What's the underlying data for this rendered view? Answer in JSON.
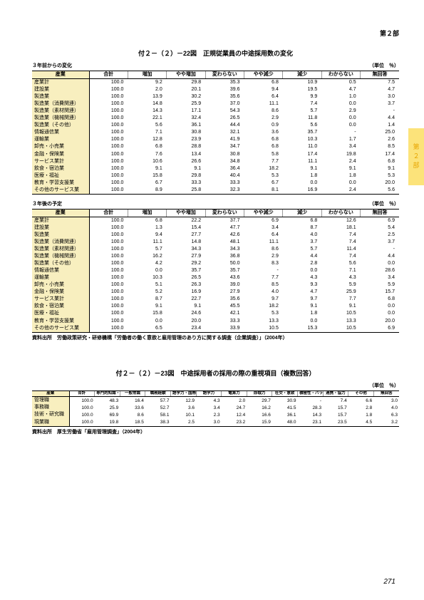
{
  "header": {
    "part": "第２部"
  },
  "sideTab": "第２部",
  "pageNumber": "271",
  "figure22": {
    "title": "付２－（２）－22図　正規従業員の中途採用数の変化",
    "unit": "（単位　％）",
    "subtitles": {
      "top": "３年前からの変化",
      "bottom": "３年後の予定"
    },
    "cols": [
      "産業",
      "合計",
      "増加",
      "やや増加",
      "変わらない",
      "やや減少",
      "減少",
      "わからない",
      "無回答"
    ],
    "rowsLabel": [
      "産業計",
      "建設業",
      "製造業",
      "製造業（消費関連）",
      "製造業（素材関連）",
      "製造業（機械関連）",
      "製造業（その他）",
      "情報通信業",
      "運輸業",
      "卸売・小売業",
      "金融・保険業",
      "サービス業計",
      "飲食・宿泊業",
      "医療・福祉",
      "教育・学習支援業",
      "その他のサービス業"
    ],
    "top": [
      [
        "100.0",
        "9.2",
        "29.8",
        "35.3",
        "6.8",
        "10.9",
        "0.5",
        "7.5"
      ],
      [
        "100.0",
        "2.0",
        "20.1",
        "39.6",
        "9.4",
        "19.5",
        "4.7",
        "4.7"
      ],
      [
        "100.0",
        "13.9",
        "30.2",
        "35.6",
        "6.4",
        "9.9",
        "1.0",
        "3.0"
      ],
      [
        "100.0",
        "14.8",
        "25.9",
        "37.0",
        "11.1",
        "7.4",
        "0.0",
        "3.7"
      ],
      [
        "100.0",
        "14.3",
        "17.1",
        "54.3",
        "8.6",
        "5.7",
        "2.9",
        "-"
      ],
      [
        "100.0",
        "22.1",
        "32.4",
        "26.5",
        "2.9",
        "11.8",
        "0.0",
        "4.4"
      ],
      [
        "100.0",
        "5.6",
        "36.1",
        "44.4",
        "0.9",
        "5.6",
        "0.0",
        "1.4"
      ],
      [
        "100.0",
        "7.1",
        "30.8",
        "32.1",
        "3.6",
        "35.7",
        "-",
        "25.0"
      ],
      [
        "100.0",
        "12.8",
        "23.9",
        "41.9",
        "6.8",
        "10.3",
        "1.7",
        "2.6"
      ],
      [
        "100.0",
        "6.8",
        "28.8",
        "34.7",
        "6.8",
        "11.0",
        "3.4",
        "8.5"
      ],
      [
        "100.0",
        "7.6",
        "13.4",
        "30.8",
        "5.8",
        "17.4",
        "19.8",
        "17.4"
      ],
      [
        "100.0",
        "10.6",
        "26.6",
        "34.8",
        "7.7",
        "11.1",
        "2.4",
        "6.8"
      ],
      [
        "100.0",
        "9.1",
        "9.1",
        "36.4",
        "18.2",
        "9.1",
        "9.1",
        "9.1"
      ],
      [
        "100.0",
        "15.8",
        "29.8",
        "40.4",
        "5.3",
        "1.8",
        "1.8",
        "5.3"
      ],
      [
        "100.0",
        "6.7",
        "33.3",
        "33.3",
        "6.7",
        "0.0",
        "0.0",
        "20.0"
      ],
      [
        "100.0",
        "8.9",
        "25.8",
        "32.3",
        "8.1",
        "16.9",
        "2.4",
        "5.6"
      ]
    ],
    "bottom": [
      [
        "100.0",
        "6.8",
        "22.2",
        "37.7",
        "6.9",
        "6.8",
        "12.6",
        "6.9"
      ],
      [
        "100.0",
        "1.3",
        "15.4",
        "47.7",
        "3.4",
        "8.7",
        "18.1",
        "5.4"
      ],
      [
        "100.0",
        "9.4",
        "27.7",
        "42.6",
        "6.4",
        "4.0",
        "7.4",
        "2.5"
      ],
      [
        "100.0",
        "11.1",
        "14.8",
        "48.1",
        "11.1",
        "3.7",
        "7.4",
        "3.7"
      ],
      [
        "100.0",
        "5.7",
        "34.3",
        "34.3",
        "8.6",
        "5.7",
        "11.4",
        "-"
      ],
      [
        "100.0",
        "16.2",
        "27.9",
        "36.8",
        "2.9",
        "4.4",
        "7.4",
        "4.4"
      ],
      [
        "100.0",
        "4.2",
        "29.2",
        "50.0",
        "8.3",
        "2.8",
        "5.6",
        "0.0"
      ],
      [
        "100.0",
        "0.0",
        "35.7",
        "35.7",
        "-",
        "0.0",
        "7.1",
        "28.6"
      ],
      [
        "100.0",
        "10.3",
        "26.5",
        "43.6",
        "7.7",
        "4.3",
        "4.3",
        "3.4"
      ],
      [
        "100.0",
        "5.1",
        "26.3",
        "39.0",
        "8.5",
        "9.3",
        "5.9",
        "5.9"
      ],
      [
        "100.0",
        "5.2",
        "16.9",
        "27.9",
        "4.0",
        "4.7",
        "25.9",
        "15.7"
      ],
      [
        "100.0",
        "8.7",
        "22.7",
        "35.6",
        "9.7",
        "9.7",
        "7.7",
        "6.8"
      ],
      [
        "100.0",
        "9.1",
        "9.1",
        "45.5",
        "18.2",
        "9.1",
        "9.1",
        "0.0"
      ],
      [
        "100.0",
        "15.8",
        "24.6",
        "42.1",
        "5.3",
        "1.8",
        "10.5",
        "0.0"
      ],
      [
        "100.0",
        "0.0",
        "20.0",
        "33.3",
        "13.3",
        "0.0",
        "13.3",
        "20.0"
      ],
      [
        "100.0",
        "6.5",
        "23.4",
        "33.9",
        "10.5",
        "15.3",
        "10.5",
        "6.9"
      ]
    ],
    "source": "資料出所　労働政策研究・研修機構「労働者の働く意欲と雇用管理のあり方に関する調査（企業調査）」（2004年）"
  },
  "figure23": {
    "title": "付２－（２）－23図　中途採用者の採用の際の重視項目（複数回答）",
    "unit": "（単位　％）",
    "cols": [
      "産業",
      "合計",
      "専門的知識・技術",
      "一般常識",
      "職務経験",
      "語学力・国際感覚",
      "語学力",
      "電算力",
      "即戦力",
      "社交・意欲",
      "積極性・バランス感覚",
      "連携・協力",
      "その他",
      "無回答"
    ],
    "rowsLabel": [
      "管理職",
      "事務職",
      "技術・研究職",
      "現業職"
    ],
    "rows": [
      [
        "100.0",
        "48.3",
        "16.4",
        "57.7",
        "12.9",
        "4.3",
        "2.0",
        "29.7",
        "30.9",
        "-",
        "7.4",
        "6.6",
        "3.0"
      ],
      [
        "100.0",
        "25.9",
        "33.6",
        "52.7",
        "3.6",
        "3.4",
        "24.7",
        "16.2",
        "41.5",
        "28.3",
        "15.7",
        "2.8",
        "4.0"
      ],
      [
        "100.0",
        "69.9",
        "8.6",
        "58.1",
        "10.1",
        "2.3",
        "12.4",
        "16.6",
        "36.1",
        "14.3",
        "15.7",
        "1.8",
        "6.3"
      ],
      [
        "100.0",
        "19.8",
        "18.5",
        "38.3",
        "2.5",
        "3.0",
        "23.2",
        "15.9",
        "48.0",
        "23.1",
        "23.5",
        "4.5",
        "3.2"
      ]
    ],
    "source": "資料出所　厚生労働省「雇用管理調査」（2004年）"
  }
}
